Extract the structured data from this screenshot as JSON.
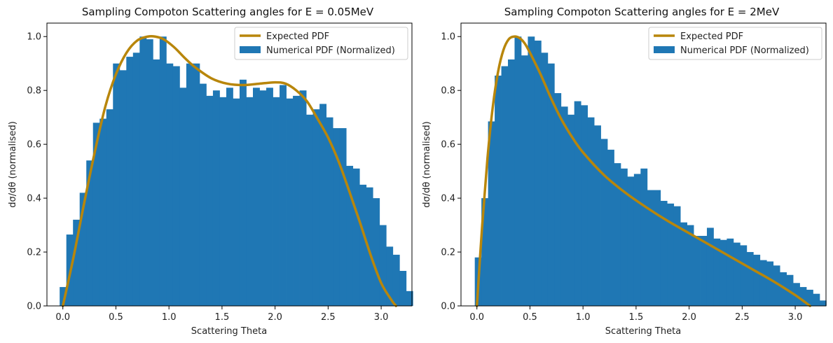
{
  "chart_data": [
    {
      "type": "bar",
      "title": "Sampling Compoton Scattering angles for E = 0.05MeV",
      "xlabel": "Scattering Theta",
      "ylabel": "dσ/dθ (normalised)",
      "xlim": [
        -0.15,
        3.29
      ],
      "ylim": [
        0.0,
        1.05
      ],
      "xticks": [
        "0.0",
        "0.5",
        "1.0",
        "1.5",
        "2.0",
        "2.5",
        "3.0"
      ],
      "yticks": [
        "0.0",
        "0.2",
        "0.4",
        "0.6",
        "0.8",
        "1.0"
      ],
      "legend": {
        "placement": "top-right",
        "entries": [
          "Expected PDF",
          "Numerical PDF (Normalized)"
        ]
      },
      "colors": {
        "histogram": "#1f77b4",
        "curve": "#b8860b"
      },
      "histogram": {
        "name": "Numerical PDF (Normalized)",
        "bin_start": -0.03,
        "bin_width": 0.0628,
        "values": [
          0.07,
          0.265,
          0.32,
          0.42,
          0.54,
          0.68,
          0.695,
          0.73,
          0.9,
          0.875,
          0.925,
          0.94,
          1.0,
          0.99,
          0.915,
          1.0,
          0.9,
          0.89,
          0.81,
          0.9,
          0.9,
          0.825,
          0.78,
          0.8,
          0.775,
          0.81,
          0.77,
          0.84,
          0.775,
          0.81,
          0.8,
          0.81,
          0.775,
          0.82,
          0.77,
          0.78,
          0.8,
          0.71,
          0.73,
          0.75,
          0.7,
          0.66,
          0.66,
          0.52,
          0.51,
          0.45,
          0.44,
          0.4,
          0.3,
          0.22,
          0.19,
          0.13,
          0.055
        ]
      },
      "curve": {
        "name": "Expected PDF",
        "x": [
          0.0,
          0.1,
          0.2,
          0.3,
          0.4,
          0.5,
          0.6,
          0.7,
          0.8,
          0.87,
          0.95,
          1.05,
          1.15,
          1.25,
          1.4,
          1.55,
          1.7,
          1.85,
          2.0,
          2.1,
          2.2,
          2.3,
          2.4,
          2.5,
          2.6,
          2.7,
          2.8,
          2.9,
          3.0,
          3.1,
          3.14
        ],
        "y": [
          0.0,
          0.18,
          0.38,
          0.57,
          0.74,
          0.86,
          0.94,
          0.985,
          1.0,
          1.0,
          0.99,
          0.96,
          0.92,
          0.885,
          0.845,
          0.825,
          0.82,
          0.825,
          0.83,
          0.825,
          0.8,
          0.76,
          0.695,
          0.625,
          0.535,
          0.425,
          0.31,
          0.19,
          0.085,
          0.02,
          0.0
        ]
      }
    },
    {
      "type": "bar",
      "title": "Sampling Compoton Scattering angles for E = 2MeV",
      "xlabel": "Scattering Theta",
      "ylabel": "dσ/dθ (normalised)",
      "xlim": [
        -0.15,
        3.29
      ],
      "ylim": [
        0.0,
        1.05
      ],
      "xticks": [
        "0.0",
        "0.5",
        "1.0",
        "1.5",
        "2.0",
        "2.5",
        "3.0"
      ],
      "yticks": [
        "0.0",
        "0.2",
        "0.4",
        "0.6",
        "0.8",
        "1.0"
      ],
      "legend": {
        "placement": "top-right",
        "entries": [
          "Expected PDF",
          "Numerical PDF (Normalized)"
        ]
      },
      "colors": {
        "histogram": "#1f77b4",
        "curve": "#b8860b"
      },
      "histogram": {
        "name": "Numerical PDF (Normalized)",
        "bin_start": -0.02,
        "bin_width": 0.0625,
        "values": [
          0.18,
          0.4,
          0.685,
          0.855,
          0.89,
          0.915,
          1.0,
          0.93,
          1.0,
          0.985,
          0.94,
          0.9,
          0.79,
          0.74,
          0.71,
          0.76,
          0.745,
          0.7,
          0.67,
          0.62,
          0.58,
          0.53,
          0.51,
          0.48,
          0.49,
          0.51,
          0.43,
          0.43,
          0.39,
          0.38,
          0.37,
          0.31,
          0.3,
          0.26,
          0.26,
          0.29,
          0.25,
          0.245,
          0.25,
          0.235,
          0.225,
          0.2,
          0.19,
          0.17,
          0.165,
          0.15,
          0.125,
          0.115,
          0.085,
          0.07,
          0.06,
          0.045,
          0.02
        ]
      },
      "curve": {
        "name": "Expected PDF",
        "x": [
          0.0,
          0.05,
          0.1,
          0.15,
          0.2,
          0.25,
          0.3,
          0.35,
          0.4,
          0.45,
          0.5,
          0.6,
          0.7,
          0.8,
          0.9,
          1.0,
          1.2,
          1.4,
          1.6,
          1.8,
          2.0,
          2.2,
          2.4,
          2.6,
          2.8,
          3.0,
          3.14
        ],
        "y": [
          0.0,
          0.3,
          0.55,
          0.74,
          0.87,
          0.95,
          0.99,
          1.0,
          0.995,
          0.975,
          0.94,
          0.86,
          0.77,
          0.69,
          0.625,
          0.57,
          0.485,
          0.42,
          0.365,
          0.315,
          0.27,
          0.225,
          0.18,
          0.135,
          0.09,
          0.04,
          0.0
        ]
      }
    }
  ]
}
